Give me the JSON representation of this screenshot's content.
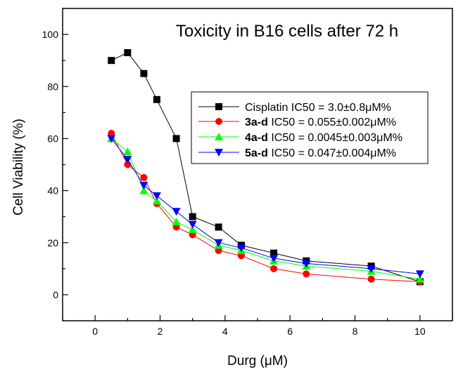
{
  "chart_data": {
    "type": "line",
    "title": "Toxicity  in B16 cells after 72 h",
    "xlabel": "Durg (μM)",
    "ylabel": "Cell Viability (%)",
    "xlim": [
      -1,
      11
    ],
    "ylim": [
      -10,
      110
    ],
    "x_ticks": [
      0,
      2,
      4,
      6,
      8,
      10
    ],
    "y_ticks": [
      0,
      20,
      40,
      60,
      80,
      100
    ],
    "legend_position": "right",
    "series": [
      {
        "name": "Cisplatin IC50 = 3.0±0.8μM%",
        "legend_bold": "",
        "legend_rest": "Cisplatin IC50 = 3.0±0.8μM%",
        "color": "#000000",
        "marker": "square",
        "x": [
          0.5,
          1,
          1.5,
          1.9,
          2.5,
          3,
          3.8,
          4.5,
          5.5,
          6.5,
          8.5,
          10
        ],
        "y": [
          90,
          93,
          85,
          75,
          60,
          30,
          26,
          19,
          16,
          13,
          11,
          5
        ]
      },
      {
        "name": "3a-d IC50 = 0.055±0.002μM%",
        "legend_bold": "3a-d",
        "legend_rest": " IC50 = 0.055±0.002μM%",
        "color": "#ff0000",
        "marker": "circle",
        "x": [
          0.5,
          1,
          1.5,
          1.9,
          2.5,
          3,
          3.8,
          4.5,
          5.5,
          6.5,
          8.5,
          10
        ],
        "y": [
          62,
          50,
          45,
          35,
          26,
          23,
          17,
          15,
          10,
          8,
          6,
          5
        ]
      },
      {
        "name": "4a-d IC50 = 0.0045±0.003μM%",
        "legend_bold": "4a-d",
        "legend_rest": " IC50 = 0.0045±0.003μM%",
        "color": "#00ff00",
        "marker": "triangle-up",
        "x": [
          0.5,
          1,
          1.5,
          1.9,
          2.5,
          3,
          3.8,
          4.5,
          5.5,
          6.5,
          8.5,
          10
        ],
        "y": [
          60,
          55,
          40,
          36,
          28,
          25,
          19,
          17,
          13,
          11,
          9,
          6
        ]
      },
      {
        "name": "5a-d IC50 = 0.047±0.004μM%",
        "legend_bold": "5a-d",
        "legend_rest": " IC50 = 0.047±0.004μM%",
        "color": "#0000ff",
        "marker": "triangle-down",
        "x": [
          0.5,
          1,
          1.5,
          1.9,
          2.5,
          3,
          3.8,
          4.5,
          5.5,
          6.5,
          8.5,
          10
        ],
        "y": [
          60,
          52,
          42,
          38,
          32,
          27,
          20,
          18,
          14,
          12,
          10,
          8
        ]
      }
    ]
  }
}
